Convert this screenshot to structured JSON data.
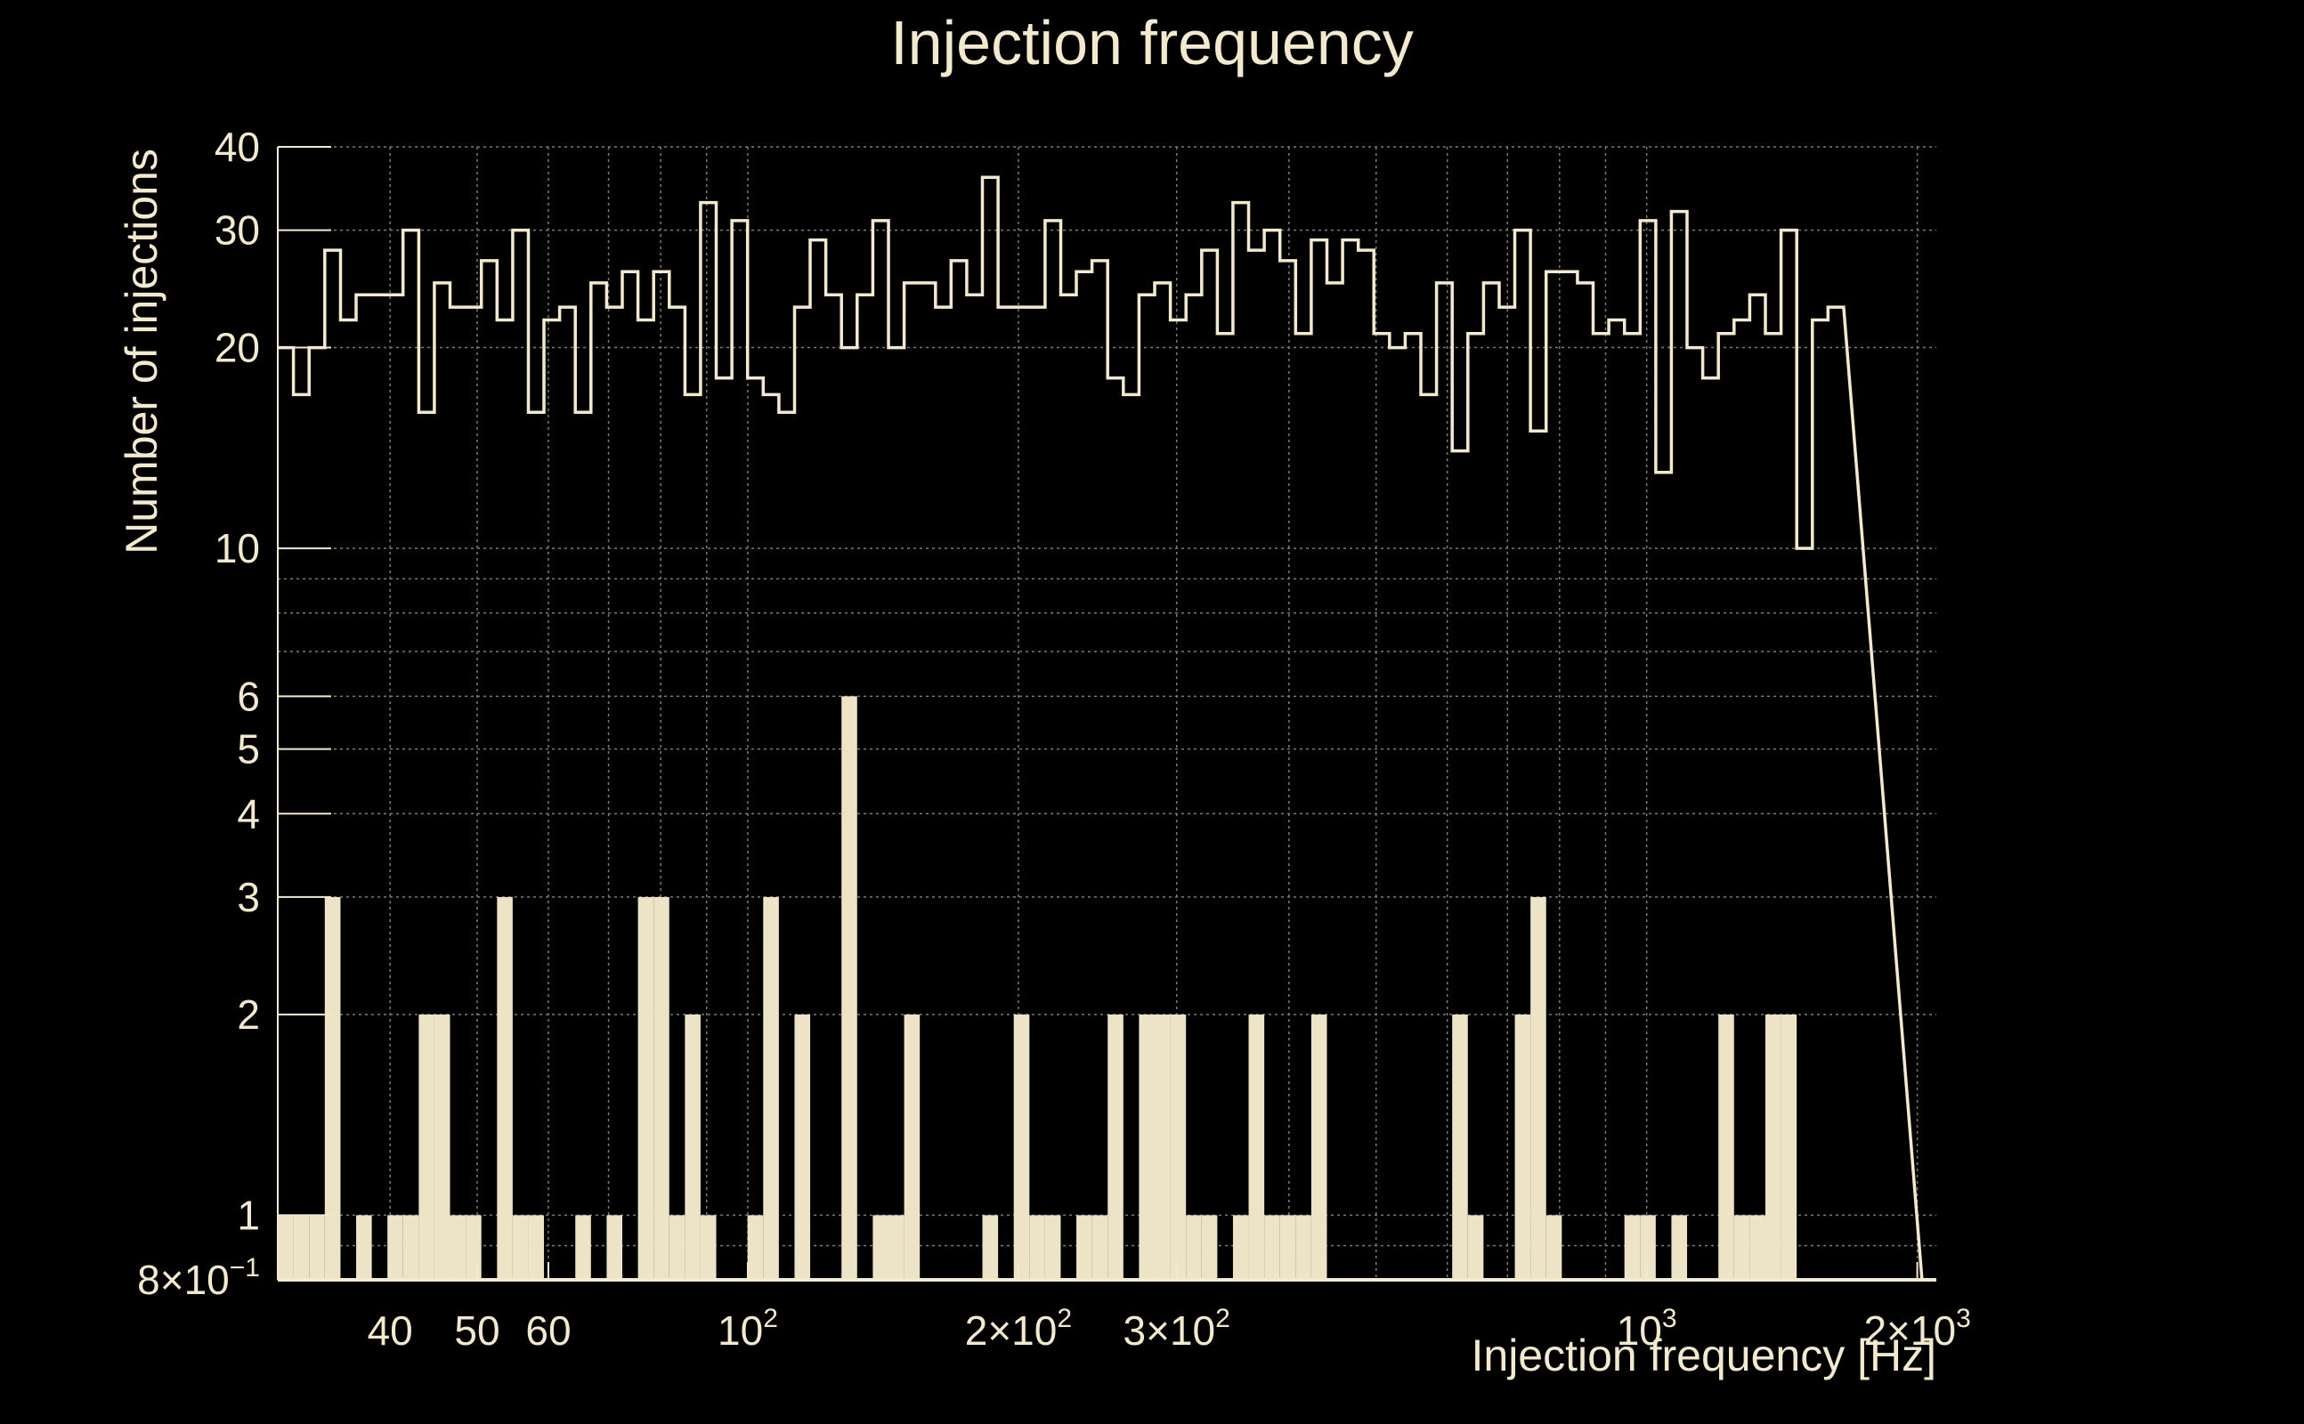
{
  "chart_data": {
    "type": "bar",
    "title": "Injection frequency",
    "xlabel": "Injection frequency [Hz]",
    "ylabel": "Number of injections",
    "x_scale": "log",
    "y_scale": "log",
    "xlim": [
      30,
      2100
    ],
    "ylim": [
      0.8,
      40
    ],
    "grid": true,
    "x_ticks": [
      {
        "value": 40,
        "base": "40",
        "sup": ""
      },
      {
        "value": 50,
        "base": "50",
        "sup": ""
      },
      {
        "value": 60,
        "base": "60",
        "sup": ""
      },
      {
        "value": 100,
        "base": "10",
        "sup": "2"
      },
      {
        "value": 200,
        "base": "2×10",
        "sup": "2"
      },
      {
        "value": 300,
        "base": "3×10",
        "sup": "2"
      },
      {
        "value": 1000,
        "base": "10",
        "sup": "3"
      },
      {
        "value": 2000,
        "base": "2×10",
        "sup": "3"
      }
    ],
    "y_ticks": [
      {
        "value": 0.8,
        "base": "8×10",
        "sup": "−1"
      },
      {
        "value": 1,
        "base": "1",
        "sup": ""
      },
      {
        "value": 2,
        "base": "2",
        "sup": ""
      },
      {
        "value": 3,
        "base": "3",
        "sup": ""
      },
      {
        "value": 4,
        "base": "4",
        "sup": ""
      },
      {
        "value": 5,
        "base": "5",
        "sup": ""
      },
      {
        "value": 6,
        "base": "6",
        "sup": ""
      },
      {
        "value": 10,
        "base": "10",
        "sup": ""
      },
      {
        "value": 20,
        "base": "20",
        "sup": ""
      },
      {
        "value": 30,
        "base": "30",
        "sup": ""
      },
      {
        "value": 40,
        "base": "40",
        "sup": ""
      }
    ],
    "bin_edges": [
      30.0,
      31.23,
      32.51,
      33.84,
      35.23,
      36.67,
      38.17,
      39.73,
      41.35,
      43.05,
      44.81,
      46.64,
      48.55,
      50.54,
      52.61,
      54.76,
      57.0,
      59.33,
      61.76,
      64.29,
      66.92,
      69.66,
      72.51,
      75.48,
      78.57,
      81.78,
      85.13,
      88.61,
      92.24,
      96.01,
      99.94,
      104.03,
      108.29,
      112.72,
      117.33,
      122.13,
      127.13,
      132.33,
      137.75,
      143.39,
      149.26,
      155.37,
      161.73,
      168.34,
      175.23,
      182.4,
      189.87,
      197.64,
      205.73,
      214.15,
      222.91,
      232.03,
      241.53,
      251.42,
      261.71,
      272.42,
      283.57,
      295.17,
      307.25,
      319.83,
      332.92,
      346.54,
      360.72,
      375.49,
      390.86,
      406.85,
      423.5,
      440.83,
      458.87,
      477.65,
      497.2,
      517.55,
      538.73,
      560.78,
      583.73,
      607.62,
      632.49,
      658.38,
      685.32,
      713.37,
      742.57,
      772.96,
      804.6,
      837.53,
      871.81,
      907.49,
      944.63,
      983.29,
      1023.53,
      1065.42,
      1109.03,
      1154.42,
      1201.67,
      1250.85,
      1302.04,
      1355.33,
      1410.8,
      1468.54,
      1528.65,
      1591.21,
      1656.34,
      1724.13,
      1794.69,
      1868.14,
      1944.6,
      2024.19
    ],
    "series": [
      {
        "values": [
          20,
          17,
          20,
          28,
          22,
          24,
          24,
          24,
          30,
          16,
          25,
          23,
          23,
          27,
          22,
          30,
          16,
          22,
          23,
          16,
          25,
          23,
          26,
          22,
          26,
          23,
          17,
          33,
          18,
          31,
          18,
          17,
          16,
          23,
          29,
          24,
          20,
          24,
          31,
          20,
          25,
          25,
          23,
          27,
          24,
          36,
          23,
          23,
          23,
          31,
          24,
          26,
          27,
          18,
          17,
          24,
          25,
          22,
          24,
          28,
          21,
          33,
          28,
          30,
          27,
          21,
          29,
          25,
          29,
          28,
          21,
          20,
          21,
          17,
          25,
          14,
          21,
          25,
          23,
          30,
          15,
          26,
          26,
          25,
          21,
          22,
          21,
          31,
          13,
          32,
          20,
          18,
          21,
          22,
          24,
          21,
          30,
          10,
          22,
          23
        ]
      },
      {
        "values": [
          1,
          1,
          1,
          3,
          0,
          1,
          0,
          1,
          1,
          2,
          2,
          1,
          1,
          0,
          3,
          1,
          1,
          0,
          0,
          1,
          0,
          1,
          0,
          3,
          3,
          1,
          2,
          1,
          0,
          0,
          1,
          3,
          0,
          2,
          0,
          0,
          6,
          0,
          1,
          1,
          2,
          0,
          0,
          0,
          0,
          1,
          0,
          2,
          1,
          1,
          0,
          1,
          1,
          2,
          0,
          2,
          2,
          2,
          1,
          1,
          0,
          1,
          2,
          1,
          1,
          1,
          2,
          0,
          0,
          0,
          0,
          0,
          0,
          0,
          0,
          2,
          1,
          0,
          0,
          2,
          3,
          1,
          0,
          0,
          0,
          0,
          1,
          1,
          0,
          1,
          0,
          0,
          2,
          1,
          1,
          2,
          2,
          0,
          0,
          0
        ]
      }
    ]
  },
  "colors": {
    "background": "#000000",
    "foreground": "#f2e9cf",
    "bar_fill": "#ede3c6",
    "grid": "#7a7a7a"
  }
}
